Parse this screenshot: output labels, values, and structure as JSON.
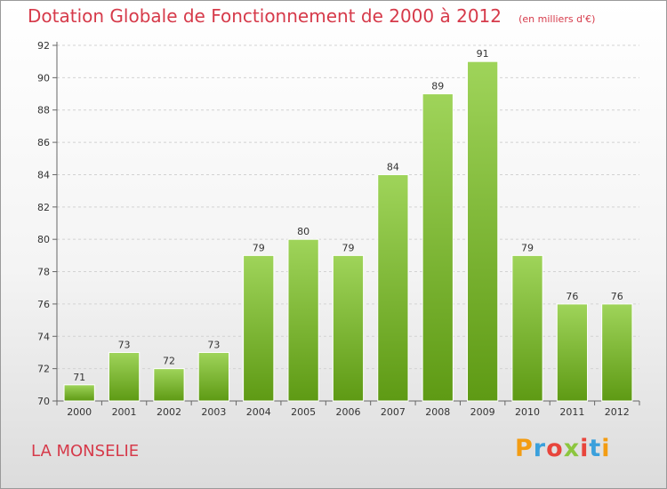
{
  "logo": {
    "text": "Proxiti",
    "letter_colors": [
      "#f39c12",
      "#3aa0dc",
      "#e8453c",
      "#8cc63f",
      "#e8453c",
      "#3aa0dc",
      "#f39c12"
    ]
  },
  "location": "LA MONSELIE",
  "chart_data": {
    "type": "bar",
    "title": "Dotation Globale de Fonctionnement de 2000 à 2012",
    "unit": "(en milliers d'€)",
    "categories": [
      "2000",
      "2001",
      "2002",
      "2003",
      "2004",
      "2005",
      "2006",
      "2007",
      "2008",
      "2009",
      "2010",
      "2011",
      "2012"
    ],
    "values": [
      71,
      73,
      72,
      73,
      79,
      80,
      79,
      84,
      89,
      91,
      79,
      76,
      76
    ],
    "ylim": [
      70,
      92
    ],
    "yticks": [
      70,
      72,
      74,
      76,
      78,
      80,
      82,
      84,
      86,
      88,
      90,
      92
    ],
    "grid": true,
    "bar_color_top": "#9fd45a",
    "bar_color_bottom": "#5e9a14",
    "title_color": "#d63a4a"
  }
}
